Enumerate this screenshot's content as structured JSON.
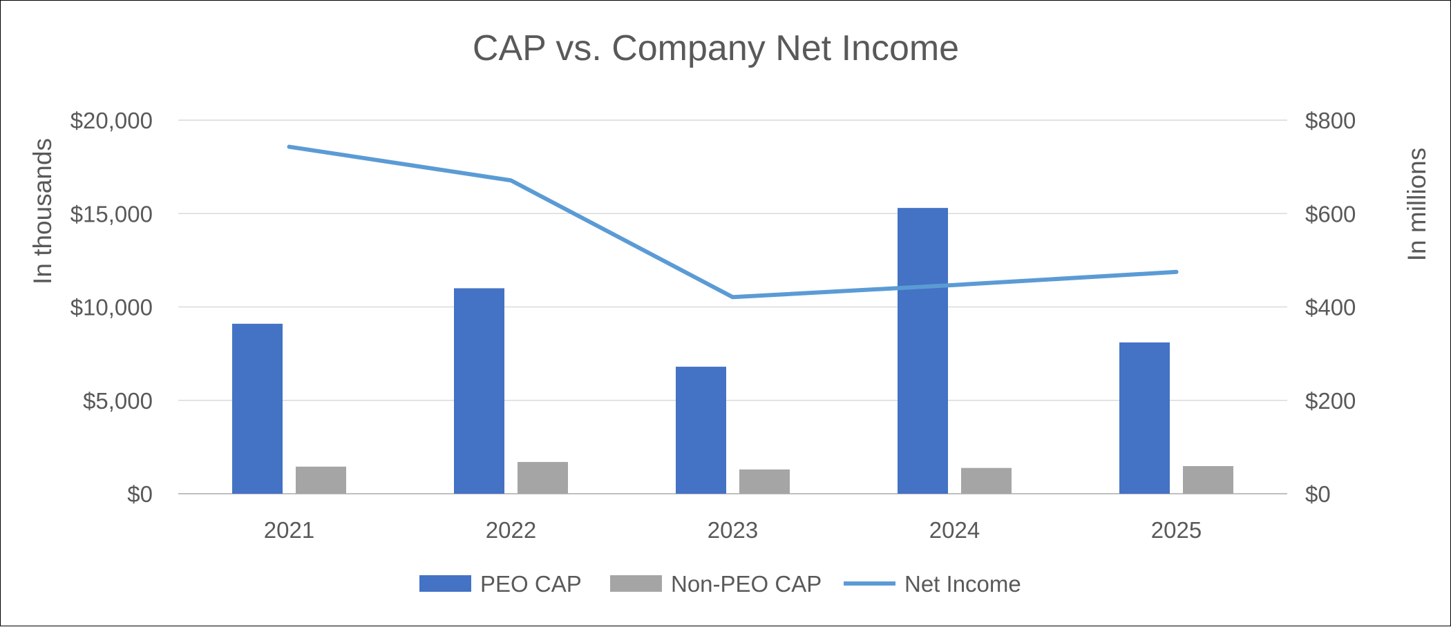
{
  "chart_data": {
    "type": "bar",
    "title": "CAP vs. Company Net Income",
    "categories": [
      "2021",
      "2022",
      "2023",
      "2024",
      "2025"
    ],
    "ylabel": "In thousands",
    "y2label": "In millions",
    "ylim": [
      0,
      20000
    ],
    "y2lim": [
      0,
      800
    ],
    "yticks": [
      "$0",
      "$5,000",
      "$10,000",
      "$15,000",
      "$20,000"
    ],
    "y2ticks": [
      "$0",
      "$200",
      "$400",
      "$600",
      "$800"
    ],
    "grid": true,
    "legend_position": "bottom",
    "series": [
      {
        "name": "PEO CAP",
        "type": "bar",
        "axis": "left",
        "color": "#4472C4",
        "values": [
          9100,
          11000,
          6800,
          15300,
          8100
        ]
      },
      {
        "name": "Non-PEO CAP",
        "type": "bar",
        "axis": "left",
        "color": "#A5A5A5",
        "values": [
          1450,
          1700,
          1300,
          1380,
          1480
        ]
      },
      {
        "name": "Net Income",
        "type": "line",
        "axis": "right",
        "color": "#5B9BD5",
        "values": [
          743,
          671,
          421,
          447,
          475
        ]
      }
    ]
  }
}
